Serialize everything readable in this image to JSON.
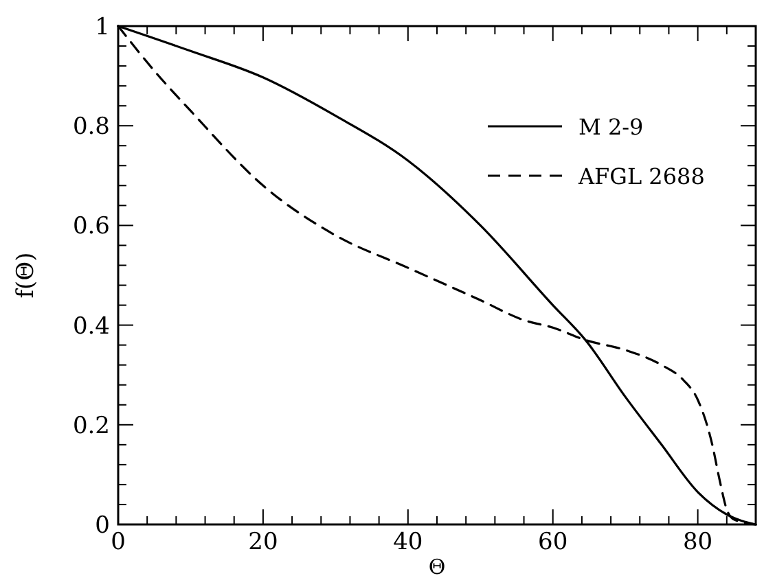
{
  "chart_data": {
    "type": "line",
    "xlabel": "Θ",
    "ylabel": "f(Θ)",
    "xlim": [
      0,
      88
    ],
    "ylim": [
      0,
      1
    ],
    "xticks": [
      0,
      {
        "value": 4,
        "label": null
      },
      {
        "value": 8,
        "label": null
      },
      {
        "value": 12,
        "label": null
      },
      {
        "value": 16,
        "label": null
      },
      20,
      {
        "value": 24,
        "label": null
      },
      {
        "value": 28,
        "label": null
      },
      {
        "value": 32,
        "label": null
      },
      {
        "value": 36,
        "label": null
      },
      40,
      {
        "value": 44,
        "label": null
      },
      {
        "value": 48,
        "label": null
      },
      {
        "value": 52,
        "label": null
      },
      {
        "value": 56,
        "label": null
      },
      60,
      {
        "value": 64,
        "label": null
      },
      {
        "value": 68,
        "label": null
      },
      {
        "value": 72,
        "label": null
      },
      {
        "value": 76,
        "label": null
      },
      80,
      {
        "value": 84,
        "label": null
      }
    ],
    "yticks": [
      0,
      {
        "value": 0.04,
        "label": null
      },
      {
        "value": 0.08,
        "label": null
      },
      {
        "value": 0.12,
        "label": null
      },
      {
        "value": 0.16,
        "label": null
      },
      0.2,
      {
        "value": 0.24,
        "label": null
      },
      {
        "value": 0.28,
        "label": null
      },
      {
        "value": 0.32,
        "label": null
      },
      {
        "value": 0.36,
        "label": null
      },
      0.4,
      {
        "value": 0.44,
        "label": null
      },
      {
        "value": 0.48,
        "label": null
      },
      {
        "value": 0.52,
        "label": null
      },
      {
        "value": 0.56,
        "label": null
      },
      0.6,
      {
        "value": 0.64,
        "label": null
      },
      {
        "value": 0.68,
        "label": null
      },
      {
        "value": 0.72,
        "label": null
      },
      {
        "value": 0.76,
        "label": null
      },
      0.8,
      {
        "value": 0.84,
        "label": null
      },
      {
        "value": 0.88,
        "label": null
      },
      {
        "value": 0.92,
        "label": null
      },
      {
        "value": 0.96,
        "label": null
      },
      1
    ],
    "legend": "top right",
    "grid": false,
    "series": [
      {
        "name": "M 2-9",
        "color": "#000000",
        "line_style": "solid",
        "x": [
          0,
          10,
          20,
          30,
          40,
          50,
          60,
          64.5,
          70,
          75,
          80,
          84,
          88
        ],
        "values": [
          1,
          0.95,
          0.897,
          0.82,
          0.73,
          0.6,
          0.44,
          0.37,
          0.256,
          0.16,
          0.065,
          0.02,
          0
        ]
      },
      {
        "name": "AFGL 2688",
        "color": "#000000",
        "line_style": "dashed",
        "x": [
          0,
          5,
          10,
          20,
          30,
          40,
          50,
          56,
          60,
          64.5,
          70,
          75,
          78,
          80,
          82,
          83,
          84,
          85,
          88
        ],
        "values": [
          1,
          0.91,
          0.83,
          0.68,
          0.58,
          0.515,
          0.45,
          0.41,
          0.395,
          0.37,
          0.35,
          0.32,
          0.29,
          0.25,
          0.16,
          0.09,
          0.03,
          0.01,
          0
        ]
      }
    ]
  }
}
